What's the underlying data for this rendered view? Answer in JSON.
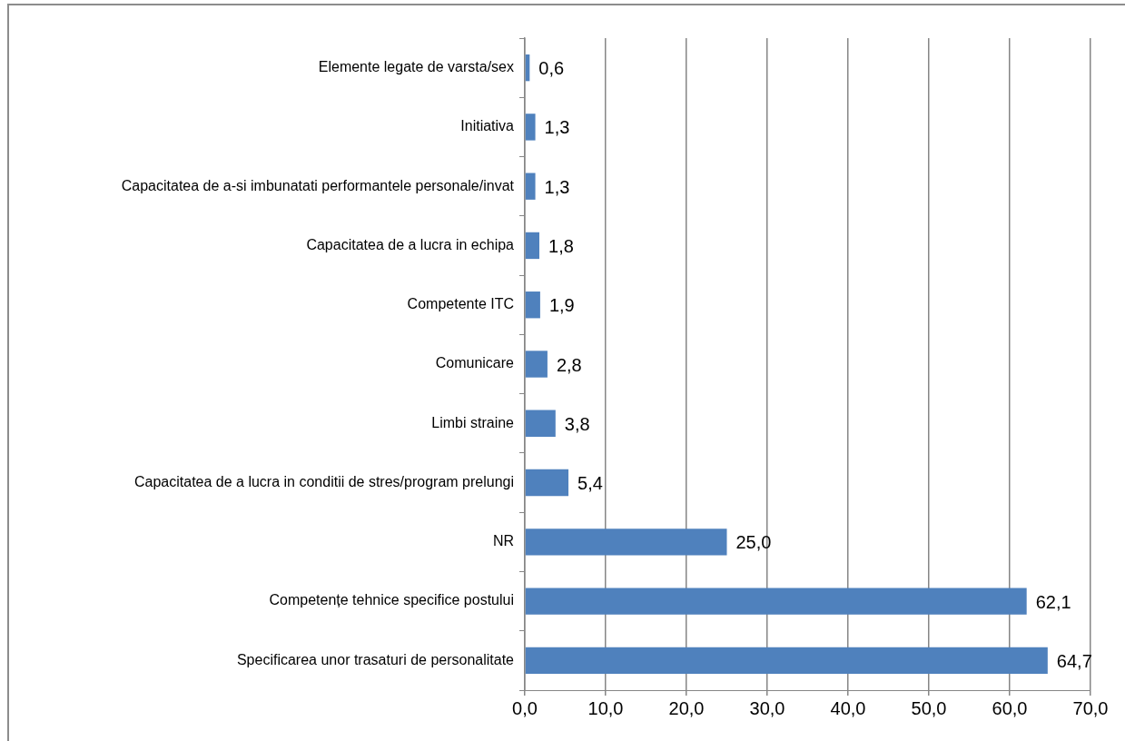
{
  "chart_data": {
    "type": "bar",
    "orientation": "horizontal",
    "categories": [
      "Elemente legate de varsta/sex",
      "Initiativa",
      "Capacitatea de a-si imbunatati performantele personale/invat",
      "Capacitatea de a lucra in echipa",
      "Competente ITC",
      "Comunicare",
      "Limbi straine",
      "Capacitatea de a lucra in conditii de stres/program prelungi",
      "NR",
      "Competențe tehnice specifice postului",
      "Specificarea unor trasaturi de personalitate"
    ],
    "values": [
      0.6,
      1.3,
      1.3,
      1.8,
      1.9,
      2.8,
      3.8,
      5.4,
      25.0,
      62.1,
      64.7
    ],
    "value_labels": [
      "0,6",
      "1,3",
      "1,3",
      "1,8",
      "1,9",
      "2,8",
      "3,8",
      "5,4",
      "25,0",
      "62,1",
      "64,7"
    ],
    "color": "#4f81bd",
    "xlim": [
      0,
      70
    ],
    "xticks": [
      {
        "value": 0,
        "label": "0,0"
      },
      {
        "value": 10,
        "label": "10,0"
      },
      {
        "value": 20,
        "label": "20,0"
      },
      {
        "value": 30,
        "label": "30,0"
      },
      {
        "value": 40,
        "label": "40,0"
      },
      {
        "value": 50,
        "label": "50,0"
      },
      {
        "value": 60,
        "label": "60,0"
      },
      {
        "value": 70,
        "label": "70,0"
      }
    ],
    "grid": "x",
    "legend": false
  }
}
